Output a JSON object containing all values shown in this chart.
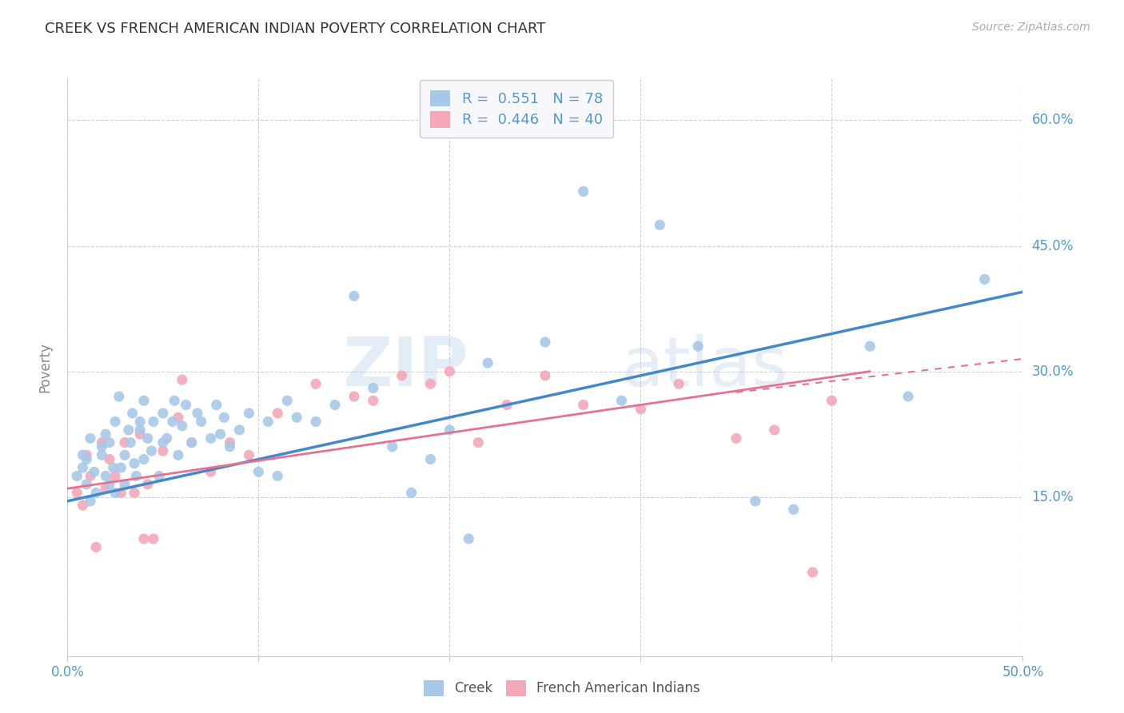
{
  "title": "CREEK VS FRENCH AMERICAN INDIAN POVERTY CORRELATION CHART",
  "source": "Source: ZipAtlas.com",
  "ylabel": "Poverty",
  "creek_R": 0.551,
  "creek_N": 78,
  "french_R": 0.446,
  "french_N": 40,
  "xlim": [
    0.0,
    0.5
  ],
  "ylim": [
    -0.04,
    0.65
  ],
  "yticks": [
    0.15,
    0.3,
    0.45,
    0.6
  ],
  "yticklabels": [
    "15.0%",
    "30.0%",
    "45.0%",
    "60.0%"
  ],
  "xticks": [
    0.0,
    0.1,
    0.2,
    0.3,
    0.4,
    0.5
  ],
  "xticklabels": [
    "0.0%",
    "",
    "",
    "",
    "",
    "50.0%"
  ],
  "creek_color": "#a8c8e8",
  "french_color": "#f4a8b8",
  "creek_line_color": "#4488cc",
  "french_line_color": "#e87090",
  "watermark": "ZIPatlas",
  "background_color": "#ffffff",
  "grid_color": "#d0d0e0",
  "title_color": "#333333",
  "right_label_color": "#5599cc",
  "ylabel_color": "#888888",
  "source_color": "#aaaaaa",
  "creek_scatter_x": [
    0.005,
    0.008,
    0.01,
    0.012,
    0.01,
    0.008,
    0.012,
    0.015,
    0.014,
    0.018,
    0.02,
    0.018,
    0.022,
    0.02,
    0.024,
    0.022,
    0.025,
    0.025,
    0.028,
    0.027,
    0.03,
    0.03,
    0.032,
    0.033,
    0.035,
    0.034,
    0.036,
    0.038,
    0.04,
    0.042,
    0.04,
    0.038,
    0.044,
    0.045,
    0.048,
    0.05,
    0.05,
    0.052,
    0.055,
    0.056,
    0.058,
    0.06,
    0.062,
    0.065,
    0.068,
    0.07,
    0.075,
    0.078,
    0.08,
    0.082,
    0.085,
    0.09,
    0.095,
    0.1,
    0.105,
    0.11,
    0.115,
    0.12,
    0.13,
    0.14,
    0.15,
    0.16,
    0.17,
    0.18,
    0.19,
    0.2,
    0.21,
    0.22,
    0.25,
    0.27,
    0.29,
    0.31,
    0.33,
    0.36,
    0.38,
    0.42,
    0.44,
    0.48
  ],
  "creek_scatter_y": [
    0.175,
    0.185,
    0.165,
    0.145,
    0.195,
    0.2,
    0.22,
    0.155,
    0.18,
    0.21,
    0.175,
    0.2,
    0.165,
    0.225,
    0.185,
    0.215,
    0.155,
    0.24,
    0.185,
    0.27,
    0.165,
    0.2,
    0.23,
    0.215,
    0.19,
    0.25,
    0.175,
    0.23,
    0.195,
    0.22,
    0.265,
    0.24,
    0.205,
    0.24,
    0.175,
    0.215,
    0.25,
    0.22,
    0.24,
    0.265,
    0.2,
    0.235,
    0.26,
    0.215,
    0.25,
    0.24,
    0.22,
    0.26,
    0.225,
    0.245,
    0.21,
    0.23,
    0.25,
    0.18,
    0.24,
    0.175,
    0.265,
    0.245,
    0.24,
    0.26,
    0.39,
    0.28,
    0.21,
    0.155,
    0.195,
    0.23,
    0.1,
    0.31,
    0.335,
    0.515,
    0.265,
    0.475,
    0.33,
    0.145,
    0.135,
    0.33,
    0.27,
    0.41
  ],
  "french_scatter_x": [
    0.005,
    0.008,
    0.01,
    0.012,
    0.015,
    0.018,
    0.02,
    0.022,
    0.025,
    0.028,
    0.03,
    0.035,
    0.038,
    0.042,
    0.045,
    0.05,
    0.058,
    0.065,
    0.075,
    0.085,
    0.095,
    0.11,
    0.13,
    0.15,
    0.16,
    0.175,
    0.19,
    0.2,
    0.215,
    0.23,
    0.25,
    0.27,
    0.3,
    0.32,
    0.35,
    0.37,
    0.39,
    0.4,
    0.06,
    0.04
  ],
  "french_scatter_y": [
    0.155,
    0.14,
    0.2,
    0.175,
    0.09,
    0.215,
    0.16,
    0.195,
    0.175,
    0.155,
    0.215,
    0.155,
    0.225,
    0.165,
    0.1,
    0.205,
    0.245,
    0.215,
    0.18,
    0.215,
    0.2,
    0.25,
    0.285,
    0.27,
    0.265,
    0.295,
    0.285,
    0.3,
    0.215,
    0.26,
    0.295,
    0.26,
    0.255,
    0.285,
    0.22,
    0.23,
    0.06,
    0.265,
    0.29,
    0.1
  ],
  "creek_line_x": [
    0.0,
    0.5
  ],
  "creek_line_y": [
    0.145,
    0.395
  ],
  "french_line_x": [
    0.0,
    0.42
  ],
  "french_line_y": [
    0.16,
    0.3
  ]
}
